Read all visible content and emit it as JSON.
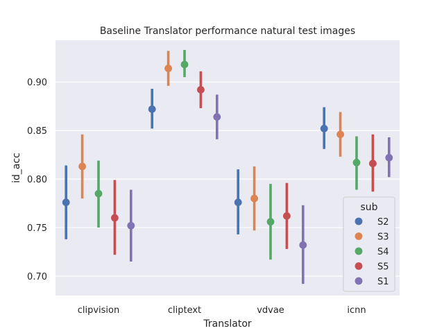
{
  "chart_data": {
    "type": "pointplot",
    "title": "Baseline Translator performance natural test images",
    "xlabel": "Translator",
    "ylabel": "id_acc",
    "categories": [
      "clipvision",
      "cliptext",
      "vdvae",
      "icnn"
    ],
    "ylim": [
      0.68,
      0.943
    ],
    "yticks": [
      "0.70",
      "0.75",
      "0.80",
      "0.85",
      "0.90"
    ],
    "grid": true,
    "legend": {
      "title": "sub",
      "placement": "lower-right"
    },
    "series": [
      {
        "name": "S2",
        "color": "#4c72b0",
        "values": [
          0.776,
          0.872,
          0.776,
          0.852
        ],
        "ci_low": [
          0.738,
          0.852,
          0.743,
          0.831
        ],
        "ci_high": [
          0.814,
          0.893,
          0.81,
          0.874
        ]
      },
      {
        "name": "S3",
        "color": "#dd8452",
        "values": [
          0.813,
          0.914,
          0.78,
          0.846
        ],
        "ci_low": [
          0.78,
          0.896,
          0.747,
          0.823
        ],
        "ci_high": [
          0.846,
          0.932,
          0.813,
          0.869
        ]
      },
      {
        "name": "S4",
        "color": "#55a868",
        "values": [
          0.785,
          0.918,
          0.756,
          0.817
        ],
        "ci_low": [
          0.75,
          0.905,
          0.717,
          0.789
        ],
        "ci_high": [
          0.819,
          0.933,
          0.795,
          0.844
        ]
      },
      {
        "name": "S5",
        "color": "#c44e52",
        "values": [
          0.76,
          0.892,
          0.762,
          0.816
        ],
        "ci_low": [
          0.722,
          0.873,
          0.728,
          0.787
        ],
        "ci_high": [
          0.799,
          0.911,
          0.796,
          0.846
        ]
      },
      {
        "name": "S1",
        "color": "#8172b3",
        "values": [
          0.752,
          0.864,
          0.732,
          0.822
        ],
        "ci_low": [
          0.715,
          0.841,
          0.692,
          0.802
        ],
        "ci_high": [
          0.789,
          0.887,
          0.773,
          0.843
        ]
      }
    ]
  }
}
